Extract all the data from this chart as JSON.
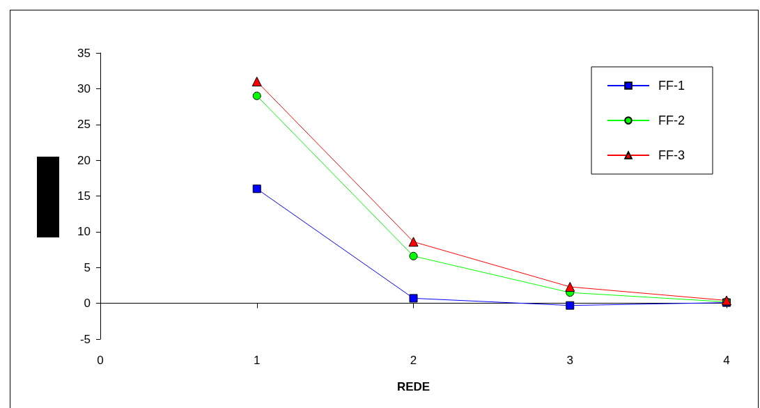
{
  "chart_data": {
    "type": "line",
    "xlabel": "REDE",
    "x": [
      1,
      2,
      3,
      4
    ],
    "series": [
      {
        "name": "FF-1",
        "color": "#0000ff",
        "marker": "square",
        "values": [
          16,
          0.7,
          -0.3,
          0.1
        ]
      },
      {
        "name": "FF-2",
        "color": "#00ff00",
        "marker": "circle",
        "values": [
          29,
          6.6,
          1.5,
          0.2
        ]
      },
      {
        "name": "FF-3",
        "color": "#ff0000",
        "marker": "triangle",
        "values": [
          31,
          8.6,
          2.3,
          0.4
        ]
      }
    ],
    "xlim": [
      0,
      4
    ],
    "xticks": [
      0,
      1,
      2,
      3,
      4
    ],
    "ylim": [
      -5,
      35
    ],
    "yticks": [
      -5,
      0,
      5,
      10,
      15,
      20,
      25,
      30,
      35
    ],
    "legend": "top right",
    "line_style": "solid"
  }
}
